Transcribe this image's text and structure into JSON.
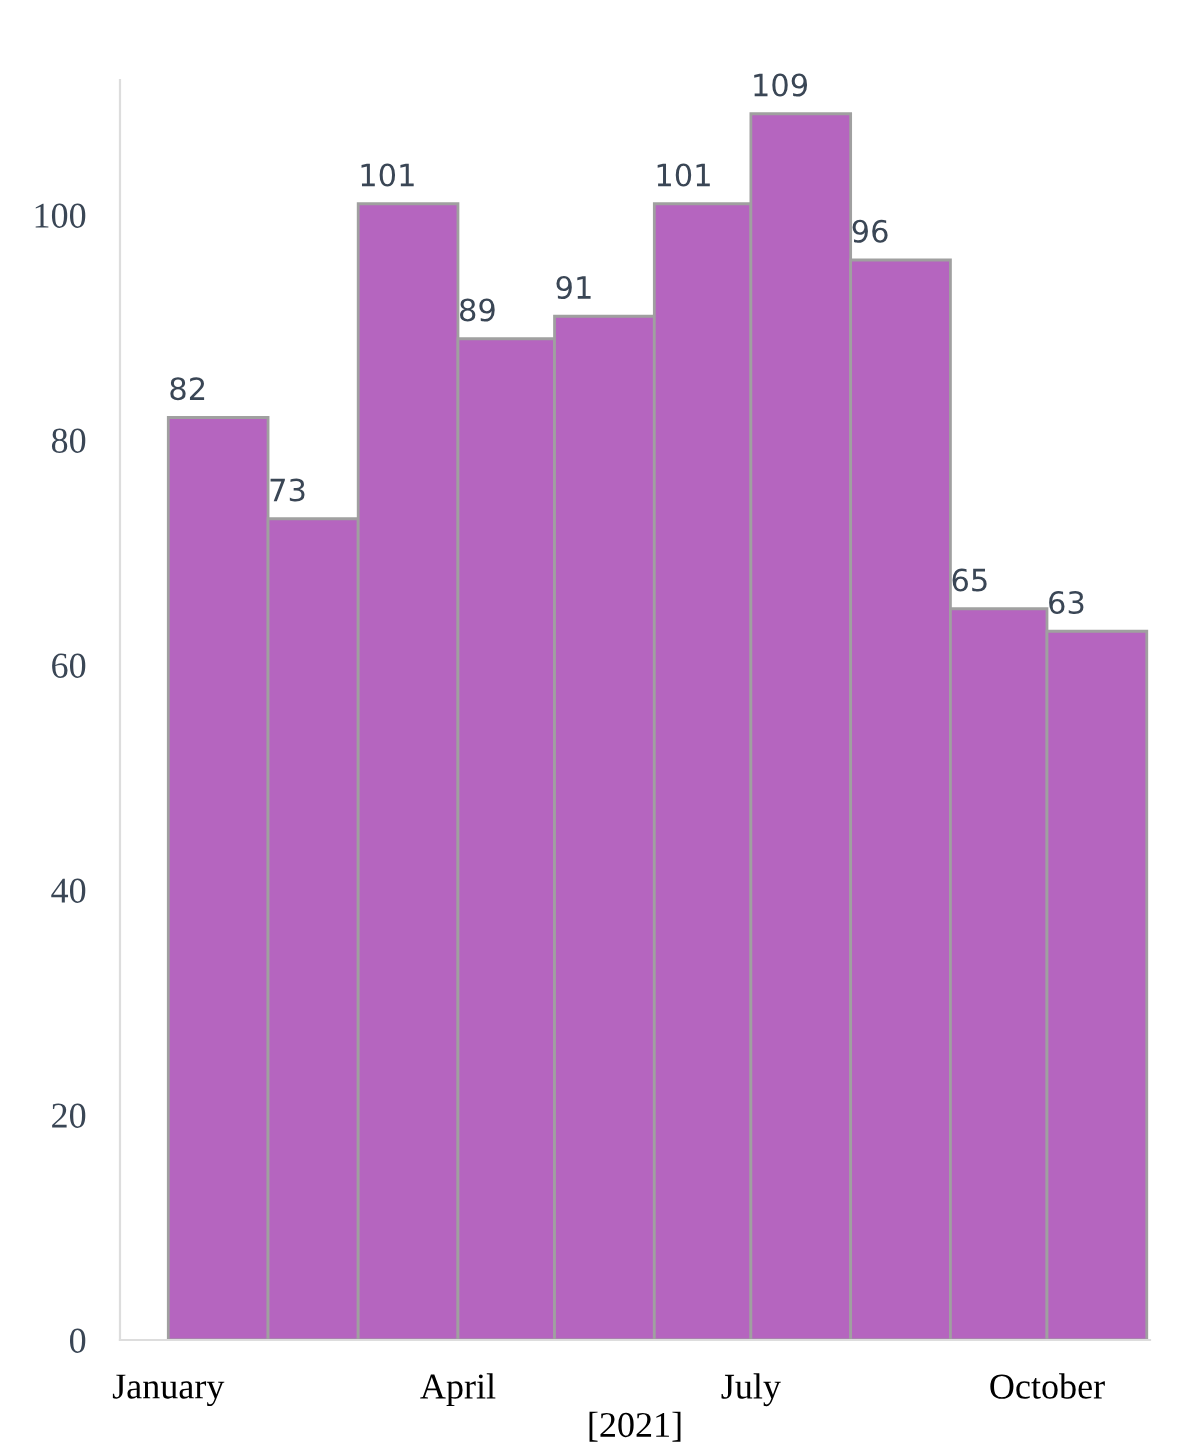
{
  "chart_data": {
    "type": "histogram",
    "xlabel": "[2021]",
    "bins": [
      "2021-01-01",
      "2021-02-01",
      "2021-03-01",
      "2021-04-01",
      "2021-05-01",
      "2021-06-01",
      "2021-07-01",
      "2021-08-01",
      "2021-09-01",
      "2021-10-01",
      "2021-11-01"
    ],
    "values": [
      82,
      73,
      101,
      89,
      91,
      101,
      109,
      96,
      65,
      63
    ],
    "color": "#b565bf",
    "data_labels": true,
    "xlim": [
      "2020-12-17",
      "2021-11-02"
    ],
    "xticks": [
      {
        "value": "2021-01-01",
        "label": "January"
      },
      {
        "value": "2021-04-01",
        "label": "April"
      },
      {
        "value": "2021-07-01",
        "label": "July"
      },
      {
        "value": "2021-10-01",
        "label": "October"
      }
    ],
    "ylim": [
      0,
      112
    ],
    "yticks": [
      0,
      20,
      40,
      60,
      80,
      100
    ],
    "grid": false
  }
}
